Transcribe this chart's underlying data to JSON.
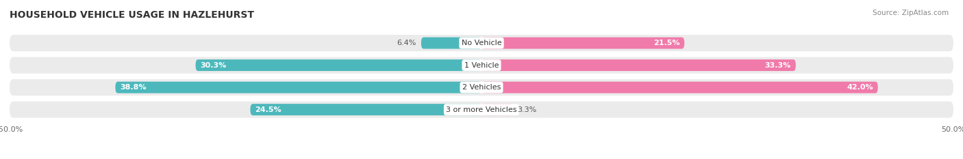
{
  "title": "HOUSEHOLD VEHICLE USAGE IN HAZLEHURST",
  "source": "Source: ZipAtlas.com",
  "categories": [
    "No Vehicle",
    "1 Vehicle",
    "2 Vehicles",
    "3 or more Vehicles"
  ],
  "owner_values": [
    6.4,
    30.3,
    38.8,
    24.5
  ],
  "renter_values": [
    21.5,
    33.3,
    42.0,
    3.3
  ],
  "owner_color": "#4db8bc",
  "renter_color": "#f07aaa",
  "xlim": [
    -50,
    50
  ],
  "bg_color": "#ffffff",
  "bar_bg_color": "#ebebeb",
  "bar_height": 0.52,
  "title_fontsize": 10,
  "label_fontsize": 8,
  "value_fontsize": 8,
  "category_fontsize": 8,
  "legend_fontsize": 9,
  "source_fontsize": 7.5
}
